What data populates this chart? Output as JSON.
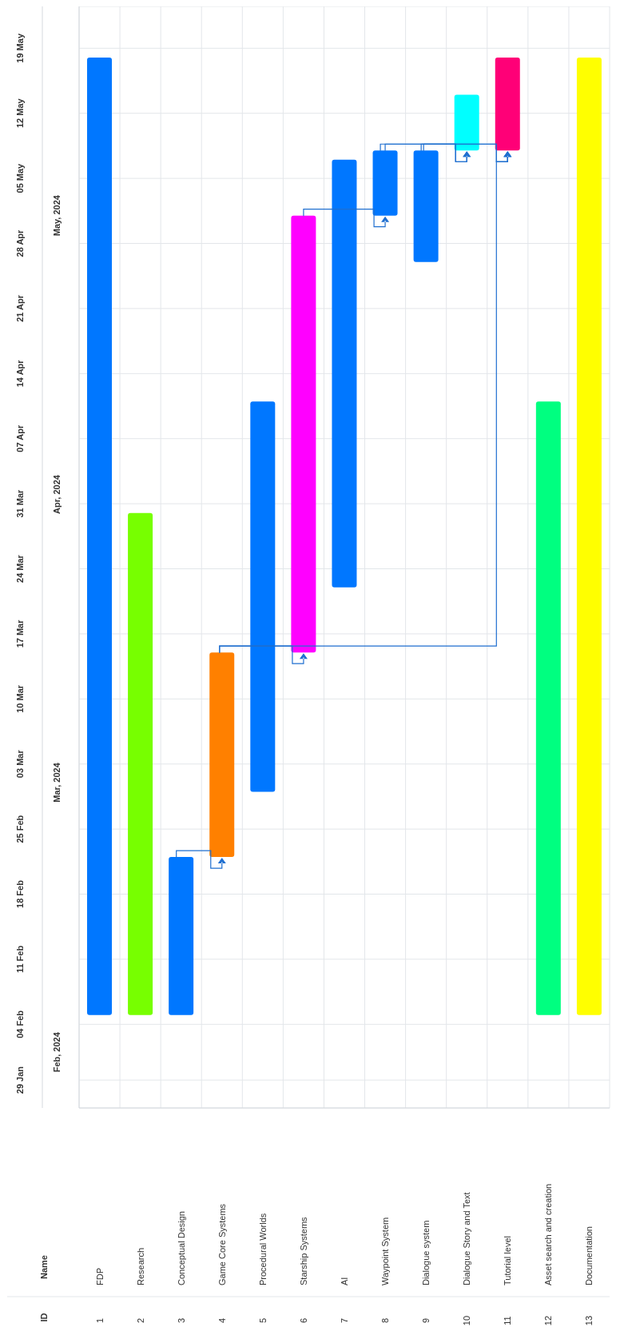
{
  "chart_data": {
    "type": "bar",
    "categories": [
      "FDP",
      "Research",
      "Conceptual Design",
      "Game Core Systems",
      "Procedural Worlds",
      "Starship Systems",
      "AI",
      "Waypoint System",
      "Dialogue system",
      "Dialogue Story and Text",
      "Tutorial level",
      "Asset search and creation",
      "Documentation"
    ],
    "base": [
      19758,
      19758,
      19758,
      19775,
      19782,
      19797,
      19804,
      19844,
      19839,
      19851,
      19851,
      19758,
      19758
    ],
    "values": [
      103,
      54,
      17,
      22,
      42,
      47,
      46,
      7,
      12,
      6,
      10,
      66,
      103
    ],
    "colors": [
      "#0077ff",
      "#77ff00",
      "#0077ff",
      "#ff8000",
      "#0077ff",
      "#ff00ff",
      "#0077ff",
      "#0077ff",
      "#0077ff",
      "#00ffff",
      "#ff0077",
      "#00ff80",
      "#ffff00"
    ],
    "ylim": [
      "2024-01-26",
      "2024-05-23T12:00"
    ],
    "yticks": [
      {
        "value": "2024-01-29",
        "label": "29 Jan"
      },
      {
        "value": "2024-02-04",
        "label": "04 Feb"
      },
      {
        "value": "2024-02-11",
        "label": "11 Feb"
      },
      {
        "value": "2024-02-18",
        "label": "18 Feb"
      },
      {
        "value": "2024-02-25",
        "label": "25 Feb"
      },
      {
        "value": "2024-03-03",
        "label": "03 Mar"
      },
      {
        "value": "2024-03-10",
        "label": "10 Mar"
      },
      {
        "value": "2024-03-17",
        "label": "17 Mar"
      },
      {
        "value": "2024-03-24",
        "label": "24 Mar"
      },
      {
        "value": "2024-03-31",
        "label": "31 Mar"
      },
      {
        "value": "2024-04-07",
        "label": "07 Apr"
      },
      {
        "value": "2024-04-14",
        "label": "14 Apr"
      },
      {
        "value": "2024-04-21",
        "label": "21 Apr"
      },
      {
        "value": "2024-04-28",
        "label": "28 Apr"
      },
      {
        "value": "2024-05-05",
        "label": "05 May"
      },
      {
        "value": "2024-05-12",
        "label": "12 May"
      },
      {
        "value": "2024-05-19",
        "label": "19 May"
      }
    ],
    "y2lim": [
      "2024-01-26",
      "2024-05-23T12:00"
    ],
    "y2ticks": [
      {
        "value": "2024-02-01",
        "label": "Feb, 2024"
      },
      {
        "value": "2024-03-01",
        "label": "Mar, 2024"
      },
      {
        "value": "2024-04-01",
        "label": "Apr, 2024"
      },
      {
        "value": "2024-05-01",
        "label": "May, 2024"
      }
    ],
    "annotations": [
      "ID",
      "Name",
      "1",
      "2",
      "3",
      "4",
      "5",
      "6",
      "7",
      "8",
      "9",
      "10",
      "11",
      "12",
      "13"
    ],
    "grid": true
  }
}
